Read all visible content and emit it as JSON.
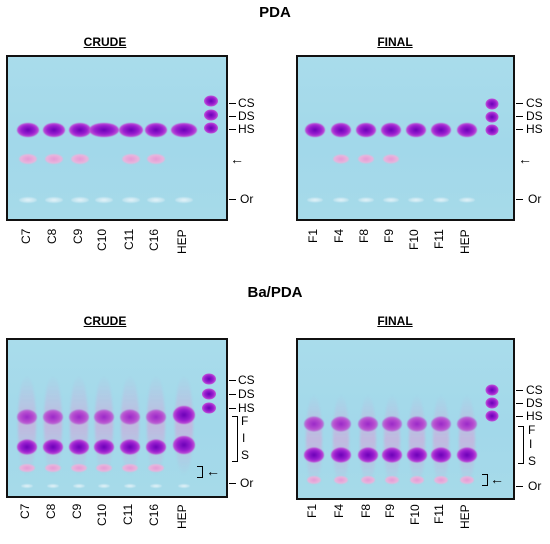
{
  "titles": {
    "top": "PDA",
    "bottom": "Ba/PDA"
  },
  "panels": {
    "tl": {
      "subtitle": "CRUDE",
      "lanes": [
        "C7",
        "C8",
        "C9",
        "C10",
        "C11",
        "C16",
        "HEP"
      ]
    },
    "tr": {
      "subtitle": "FINAL",
      "lanes": [
        "F1",
        "F4",
        "F8",
        "F9",
        "F10",
        "F11",
        "HEP"
      ]
    },
    "bl": {
      "subtitle": "CRUDE",
      "lanes": [
        "C7",
        "C8",
        "C9",
        "C10",
        "C11",
        "C16",
        "HEP"
      ]
    },
    "br": {
      "subtitle": "FINAL",
      "lanes": [
        "F1",
        "F4",
        "F8",
        "F9",
        "F10",
        "F11",
        "HEP"
      ]
    }
  },
  "marker_labels": {
    "cs": "CS",
    "ds": "DS",
    "hs": "HS",
    "or": "Or",
    "f": "F",
    "i": "I",
    "s": "S",
    "arrow": "←"
  },
  "colors": {
    "gel_background": "#a6dae9",
    "stain_strong": "#8a15c4",
    "stain_faint": "#d58bd0"
  }
}
